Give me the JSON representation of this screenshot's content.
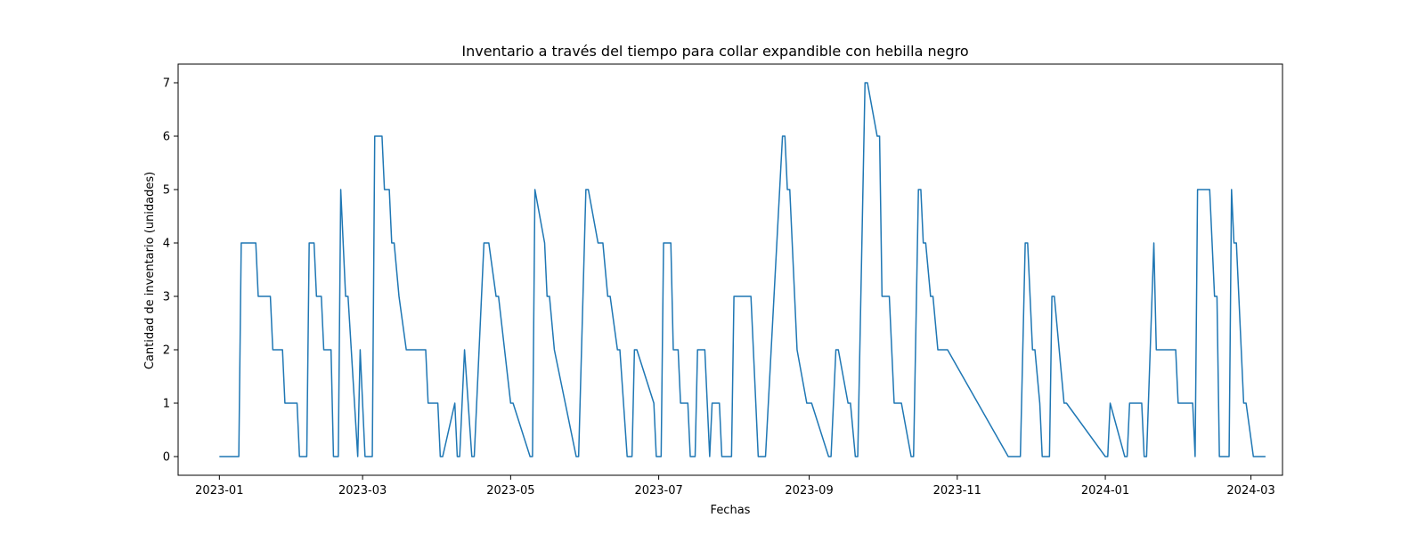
{
  "chart_data": {
    "type": "line",
    "title": "Inventario a través del tiempo para collar expandible con hebilla negro",
    "xlabel": "Fechas",
    "ylabel": "Cantidad de inventario (unidades)",
    "xlim": [
      "2022-12-15",
      "2024-03-14"
    ],
    "ylim": [
      -0.35,
      7.35
    ],
    "grid": false,
    "line_color": "#1f77b4",
    "x_ticks": [
      {
        "date": "2023-01-01",
        "label": "2023-01"
      },
      {
        "date": "2023-03-01",
        "label": "2023-03"
      },
      {
        "date": "2023-05-01",
        "label": "2023-05"
      },
      {
        "date": "2023-07-01",
        "label": "2023-07"
      },
      {
        "date": "2023-09-01",
        "label": "2023-09"
      },
      {
        "date": "2023-11-01",
        "label": "2023-11"
      },
      {
        "date": "2024-01-01",
        "label": "2024-01"
      },
      {
        "date": "2024-03-01",
        "label": "2024-03"
      }
    ],
    "y_ticks": [
      0,
      1,
      2,
      3,
      4,
      5,
      6,
      7
    ],
    "series": [
      {
        "x": [
          "2023-01-01",
          "2023-01-09",
          "2023-01-10",
          "2023-01-16",
          "2023-01-17",
          "2023-01-22",
          "2023-01-23",
          "2023-01-27",
          "2023-01-28",
          "2023-02-02",
          "2023-02-03",
          "2023-02-06",
          "2023-02-07",
          "2023-02-09",
          "2023-02-10",
          "2023-02-12",
          "2023-02-13",
          "2023-02-16",
          "2023-02-17",
          "2023-02-19",
          "2023-02-20",
          "2023-02-22",
          "2023-02-23",
          "2023-02-27",
          "2023-02-28",
          "2023-03-01",
          "2023-03-02",
          "2023-03-05",
          "2023-03-06",
          "2023-03-09",
          "2023-03-10",
          "2023-03-12",
          "2023-03-13",
          "2023-03-14",
          "2023-03-16",
          "2023-03-19",
          "2023-03-27",
          "2023-03-28",
          "2023-04-01",
          "2023-04-02",
          "2023-04-03",
          "2023-04-08",
          "2023-04-09",
          "2023-04-10",
          "2023-04-12",
          "2023-04-15",
          "2023-04-16",
          "2023-04-20",
          "2023-04-21",
          "2023-04-22",
          "2023-04-25",
          "2023-04-26",
          "2023-05-01",
          "2023-05-02",
          "2023-05-09",
          "2023-05-10",
          "2023-05-11",
          "2023-05-15",
          "2023-05-16",
          "2023-05-17",
          "2023-05-19",
          "2023-05-28",
          "2023-05-29",
          "2023-06-01",
          "2023-06-02",
          "2023-06-06",
          "2023-06-07",
          "2023-06-08",
          "2023-06-10",
          "2023-06-11",
          "2023-06-14",
          "2023-06-15",
          "2023-06-18",
          "2023-06-19",
          "2023-06-20",
          "2023-06-21",
          "2023-06-22",
          "2023-06-29",
          "2023-06-30",
          "2023-07-02",
          "2023-07-03",
          "2023-07-06",
          "2023-07-07",
          "2023-07-09",
          "2023-07-10",
          "2023-07-13",
          "2023-07-14",
          "2023-07-16",
          "2023-07-17",
          "2023-07-20",
          "2023-07-22",
          "2023-07-23",
          "2023-07-26",
          "2023-07-27",
          "2023-07-31",
          "2023-08-01",
          "2023-08-08",
          "2023-08-09",
          "2023-08-10",
          "2023-08-11",
          "2023-08-12",
          "2023-08-13",
          "2023-08-14",
          "2023-08-21",
          "2023-08-22",
          "2023-08-23",
          "2023-08-24",
          "2023-08-27",
          "2023-08-31",
          "2023-09-01",
          "2023-09-02",
          "2023-09-09",
          "2023-09-10",
          "2023-09-12",
          "2023-09-13",
          "2023-09-17",
          "2023-09-18",
          "2023-09-20",
          "2023-09-21",
          "2023-09-24",
          "2023-09-25",
          "2023-09-29",
          "2023-09-30",
          "2023-10-01",
          "2023-10-04",
          "2023-10-06",
          "2023-10-09",
          "2023-10-13",
          "2023-10-14",
          "2023-10-16",
          "2023-10-17",
          "2023-10-18",
          "2023-10-19",
          "2023-10-21",
          "2023-10-22",
          "2023-10-24",
          "2023-10-28",
          "2023-11-22",
          "2023-11-23",
          "2023-11-27",
          "2023-11-29",
          "2023-11-30",
          "2023-12-02",
          "2023-12-03",
          "2023-12-05",
          "2023-12-06",
          "2023-12-09",
          "2023-12-10",
          "2023-12-11",
          "2023-12-15",
          "2023-12-16",
          "2024-01-01",
          "2024-01-02",
          "2024-01-03",
          "2024-01-09",
          "2024-01-10",
          "2024-01-11",
          "2024-01-16",
          "2024-01-17",
          "2024-01-18",
          "2024-01-21",
          "2024-01-22",
          "2024-01-30",
          "2024-01-31",
          "2024-02-06",
          "2024-02-07",
          "2024-02-08",
          "2024-02-13",
          "2024-02-15",
          "2024-02-16",
          "2024-02-17",
          "2024-02-21",
          "2024-02-22",
          "2024-02-23",
          "2024-02-24",
          "2024-02-27",
          "2024-02-28",
          "2024-03-02",
          "2024-03-03",
          "2024-03-07"
        ],
        "y": [
          0,
          0,
          4,
          4,
          3,
          3,
          2,
          2,
          1,
          1,
          0,
          0,
          4,
          4,
          3,
          3,
          2,
          2,
          0,
          0,
          5,
          3,
          3,
          0,
          2,
          1,
          0,
          0,
          6,
          6,
          5,
          5,
          4,
          4,
          3,
          2,
          2,
          1,
          1,
          0,
          0,
          1,
          0,
          0,
          2,
          0,
          0,
          4,
          4,
          4,
          3,
          3,
          1,
          1,
          0,
          0,
          5,
          4,
          3,
          3,
          2,
          0,
          0,
          5,
          5,
          4,
          4,
          4,
          3,
          3,
          2,
          2,
          0,
          0,
          0,
          2,
          2,
          1,
          0,
          0,
          4,
          4,
          2,
          2,
          1,
          1,
          0,
          0,
          2,
          2,
          0,
          1,
          1,
          0,
          0,
          3,
          3,
          2,
          1,
          0,
          0,
          0,
          0,
          6,
          6,
          5,
          5,
          2,
          1,
          1,
          1,
          0,
          0,
          2,
          2,
          1,
          1,
          0,
          0,
          7,
          7,
          6,
          6,
          3,
          3,
          1,
          1,
          0,
          0,
          5,
          5,
          4,
          4,
          3,
          3,
          2,
          2,
          0,
          0,
          0,
          4,
          4,
          2,
          2,
          1,
          0,
          0,
          3,
          3,
          1,
          1,
          0,
          0,
          1,
          0,
          0,
          1,
          1,
          0,
          0,
          4,
          2,
          2,
          1,
          1,
          0,
          5,
          5,
          3,
          3,
          0,
          0,
          5,
          4,
          4,
          1,
          1,
          0,
          0,
          0
        ]
      }
    ]
  }
}
